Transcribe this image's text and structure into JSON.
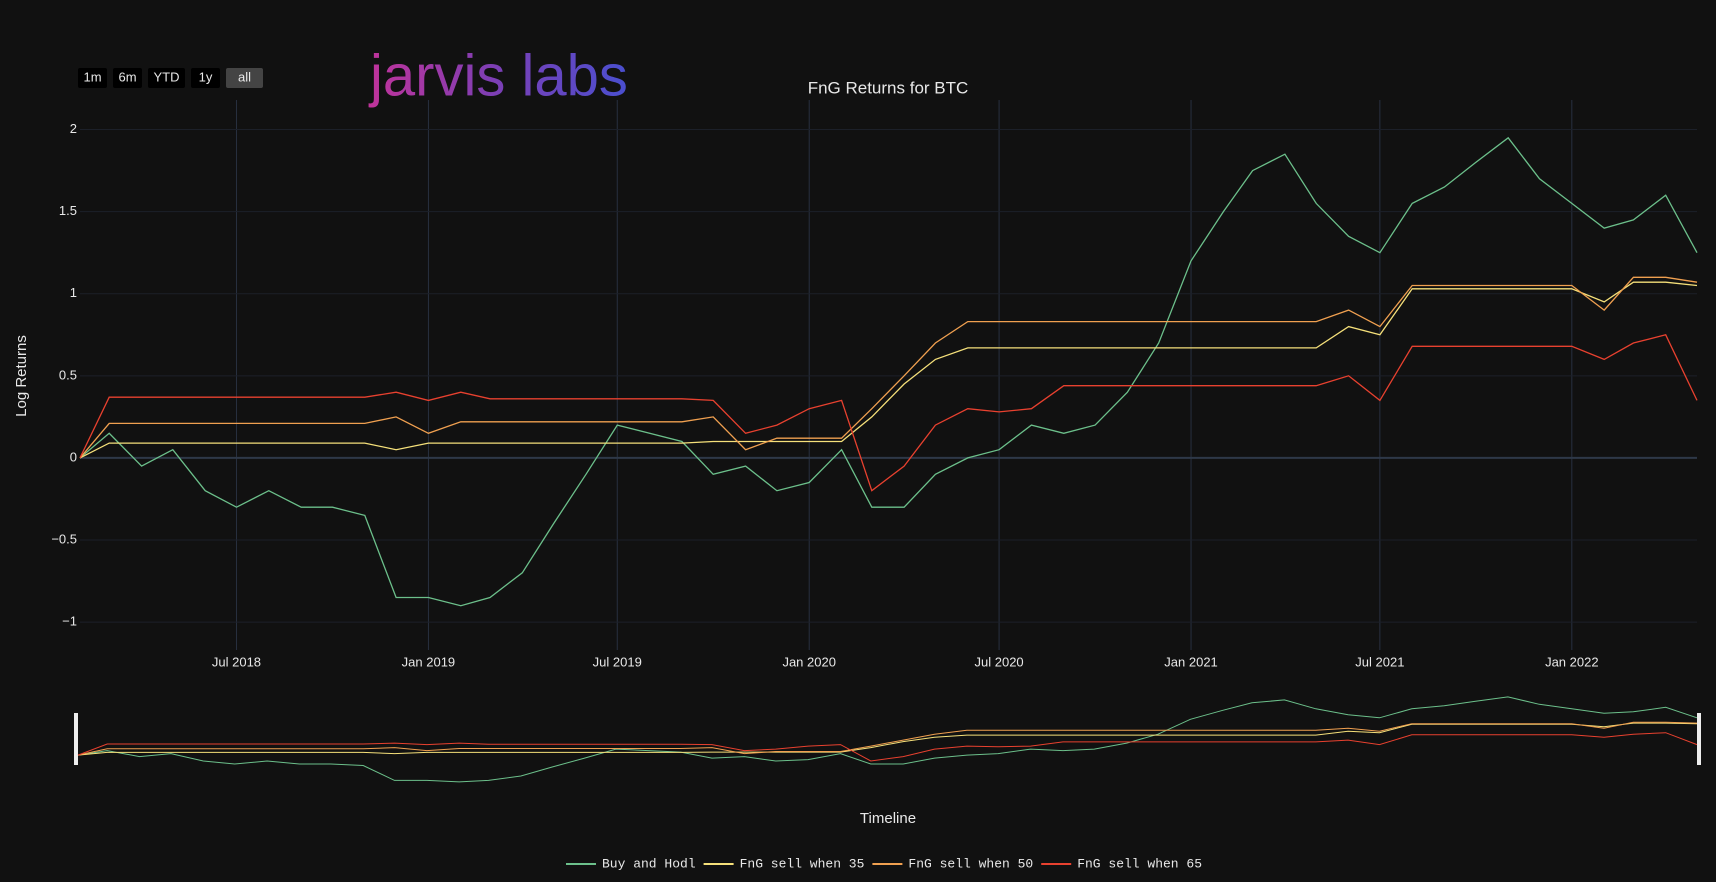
{
  "logo": "jarvis labs",
  "range_buttons": [
    "1m",
    "6m",
    "YTD",
    "1y",
    "all"
  ],
  "active_button": 4,
  "chart_data": {
    "type": "line",
    "title": "FnG Returns for BTC",
    "y_label": "Log Returns",
    "x_label": "Timeline",
    "grid": true,
    "x": [
      "2018-02-01",
      "2018-03-01",
      "2018-04-01",
      "2018-05-01",
      "2018-06-01",
      "2018-07-01",
      "2018-08-01",
      "2018-09-01",
      "2018-10-01",
      "2018-11-01",
      "2018-12-01",
      "2019-01-01",
      "2019-02-01",
      "2019-03-01",
      "2019-04-01",
      "2019-05-01",
      "2019-06-01",
      "2019-07-01",
      "2019-08-01",
      "2019-09-01",
      "2019-10-01",
      "2019-11-01",
      "2019-12-01",
      "2020-01-01",
      "2020-02-01",
      "2020-03-01",
      "2020-04-01",
      "2020-05-01",
      "2020-06-01",
      "2020-07-01",
      "2020-08-01",
      "2020-09-01",
      "2020-10-01",
      "2020-11-01",
      "2020-12-01",
      "2021-01-01",
      "2021-02-01",
      "2021-03-01",
      "2021-04-01",
      "2021-05-01",
      "2021-06-01",
      "2021-07-01",
      "2021-08-01",
      "2021-09-01",
      "2021-10-01",
      "2021-11-01",
      "2021-12-01",
      "2022-01-01",
      "2022-02-01",
      "2022-03-01",
      "2022-04-01",
      "2022-05-01"
    ],
    "xlim": [
      "2018-02-01",
      "2022-05-01"
    ],
    "xticks": [
      {
        "value": "2018-07-01",
        "label": "Jul 2018"
      },
      {
        "value": "2019-01-01",
        "label": "Jan 2019"
      },
      {
        "value": "2019-07-01",
        "label": "Jul 2019"
      },
      {
        "value": "2020-01-01",
        "label": "Jan 2020"
      },
      {
        "value": "2020-07-01",
        "label": "Jul 2020"
      },
      {
        "value": "2021-01-01",
        "label": "Jan 2021"
      },
      {
        "value": "2021-07-01",
        "label": "Jul 2021"
      },
      {
        "value": "2022-01-01",
        "label": "Jan 2022"
      }
    ],
    "ylim": [
      -1.17,
      2.18
    ],
    "yticks": [
      {
        "value": -1,
        "label": "−1"
      },
      {
        "value": -0.5,
        "label": "−0.5"
      },
      0,
      0.5,
      1,
      1.5,
      2
    ],
    "series": [
      {
        "name": "Buy and Hodl",
        "color": "#6cc08b",
        "values": [
          0.0,
          0.15,
          -0.05,
          0.05,
          -0.2,
          -0.3,
          -0.2,
          -0.3,
          -0.3,
          -0.35,
          -0.85,
          -0.85,
          -0.9,
          -0.85,
          -0.7,
          -0.4,
          -0.1,
          0.2,
          0.15,
          0.1,
          -0.1,
          -0.05,
          -0.2,
          -0.15,
          0.05,
          -0.3,
          -0.3,
          -0.1,
          0.0,
          0.05,
          0.2,
          0.15,
          0.2,
          0.4,
          0.7,
          1.2,
          1.5,
          1.75,
          1.85,
          1.55,
          1.35,
          1.25,
          1.55,
          1.65,
          1.8,
          1.95,
          1.7,
          1.55,
          1.4,
          1.45,
          1.6,
          1.25
        ]
      },
      {
        "name": "FnG sell when 35",
        "color": "#f5e07a",
        "values": [
          0.0,
          0.09,
          0.09,
          0.09,
          0.09,
          0.09,
          0.09,
          0.09,
          0.09,
          0.09,
          0.05,
          0.09,
          0.09,
          0.09,
          0.09,
          0.09,
          0.09,
          0.09,
          0.09,
          0.09,
          0.1,
          0.1,
          0.1,
          0.1,
          0.1,
          0.25,
          0.45,
          0.6,
          0.67,
          0.67,
          0.67,
          0.67,
          0.67,
          0.67,
          0.67,
          0.67,
          0.67,
          0.67,
          0.67,
          0.67,
          0.8,
          0.75,
          1.03,
          1.03,
          1.03,
          1.03,
          1.03,
          1.03,
          0.95,
          1.07,
          1.07,
          1.05
        ]
      },
      {
        "name": "FnG sell when 50",
        "color": "#f0a050",
        "values": [
          0.0,
          0.21,
          0.21,
          0.21,
          0.21,
          0.21,
          0.21,
          0.21,
          0.21,
          0.21,
          0.25,
          0.15,
          0.22,
          0.22,
          0.22,
          0.22,
          0.22,
          0.22,
          0.22,
          0.22,
          0.25,
          0.05,
          0.12,
          0.12,
          0.12,
          0.3,
          0.5,
          0.7,
          0.83,
          0.83,
          0.83,
          0.83,
          0.83,
          0.83,
          0.83,
          0.83,
          0.83,
          0.83,
          0.83,
          0.83,
          0.9,
          0.8,
          1.05,
          1.05,
          1.05,
          1.05,
          1.05,
          1.05,
          0.9,
          1.1,
          1.1,
          1.07
        ]
      },
      {
        "name": "FnG sell when 65",
        "color": "#e8412f",
        "values": [
          0.0,
          0.37,
          0.37,
          0.37,
          0.37,
          0.37,
          0.37,
          0.37,
          0.37,
          0.37,
          0.4,
          0.35,
          0.4,
          0.36,
          0.36,
          0.36,
          0.36,
          0.36,
          0.36,
          0.36,
          0.35,
          0.15,
          0.2,
          0.3,
          0.35,
          -0.2,
          -0.05,
          0.2,
          0.3,
          0.28,
          0.3,
          0.44,
          0.44,
          0.44,
          0.44,
          0.44,
          0.44,
          0.44,
          0.44,
          0.44,
          0.5,
          0.35,
          0.68,
          0.68,
          0.68,
          0.68,
          0.68,
          0.68,
          0.6,
          0.7,
          0.75,
          0.35
        ]
      }
    ]
  }
}
